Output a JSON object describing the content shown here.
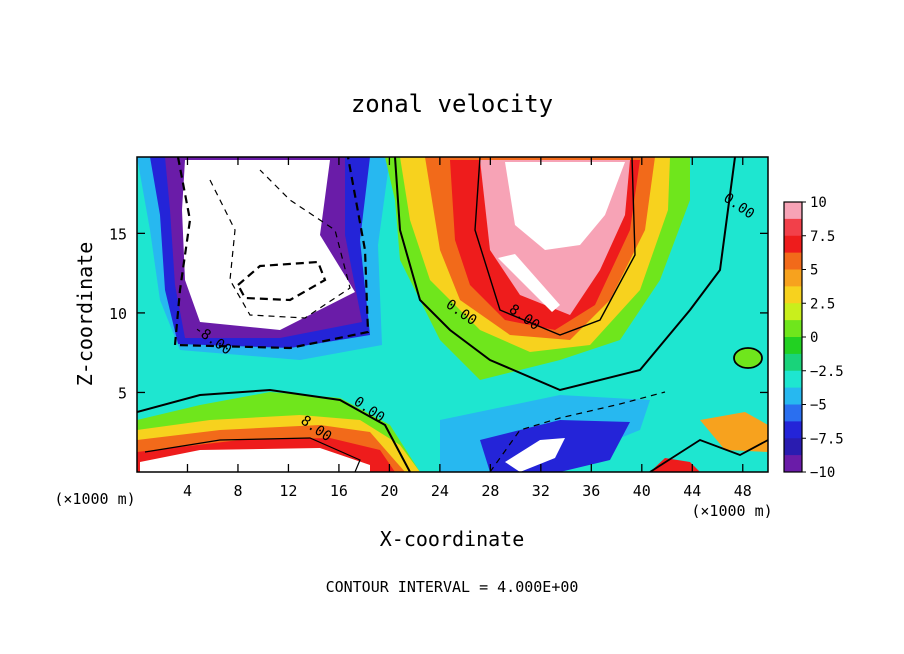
{
  "chart_data": {
    "type": "heatmap",
    "title": "zonal velocity",
    "xlabel": "X-coordinate",
    "ylabel": "Z-coordinate",
    "x_unit_label": "(×1000 m)",
    "y_unit_label": "(×1000 m)",
    "footer": "CONTOUR INTERVAL = 4.000E+00",
    "xlim": [
      0,
      50
    ],
    "ylim": [
      0,
      19.8
    ],
    "x_ticks": [
      4,
      8,
      12,
      16,
      20,
      24,
      28,
      32,
      36,
      40,
      44,
      48
    ],
    "y_ticks": [
      5,
      10,
      15
    ],
    "colorbar": {
      "range": [
        -10,
        10
      ],
      "ticks": [
        "10",
        "7.5",
        "5",
        "2.5",
        "0",
        "−2.5",
        "−5",
        "−7.5",
        "−10"
      ],
      "colors": [
        "#f7a3b6",
        "#f2404a",
        "#ee1c1c",
        "#f26a1a",
        "#f7a21e",
        "#f7d21e",
        "#c9ef1c",
        "#6fe61c",
        "#22d122",
        "#19d37a",
        "#1ee6d0",
        "#27b8f0",
        "#2a6ff0",
        "#2424d8",
        "#2a1cb0",
        "#6a1ca8"
      ]
    },
    "contour_labels": [
      {
        "text": "0.00",
        "x": 47.5,
        "y": 16.5
      },
      {
        "text": "8.00",
        "x": 30.5,
        "y": 9.5
      },
      {
        "text": "0.00",
        "x": 25.5,
        "y": 9.8
      },
      {
        "text": "-8.00",
        "x": 5.8,
        "y": 8.1
      },
      {
        "text": "0.00",
        "x": 18.2,
        "y": 3.7
      },
      {
        "text": "8.00",
        "x": 14.0,
        "y": 2.5
      }
    ],
    "features": [
      {
        "kind": "negative-jet",
        "x_range": [
          3,
          17.5
        ],
        "z_range": [
          7.5,
          19.8
        ],
        "peak": -12
      },
      {
        "kind": "positive-jet",
        "x_range": [
          24,
          40
        ],
        "z_range": [
          8.5,
          19.8
        ],
        "peak": 12
      },
      {
        "kind": "positive-jet",
        "x_range": [
          0,
          22
        ],
        "z_range": [
          0,
          5
        ],
        "peak": 12
      },
      {
        "kind": "negative-region",
        "x_range": [
          28,
          42
        ],
        "z_range": [
          0,
          4.5
        ],
        "peak": -10
      }
    ]
  }
}
